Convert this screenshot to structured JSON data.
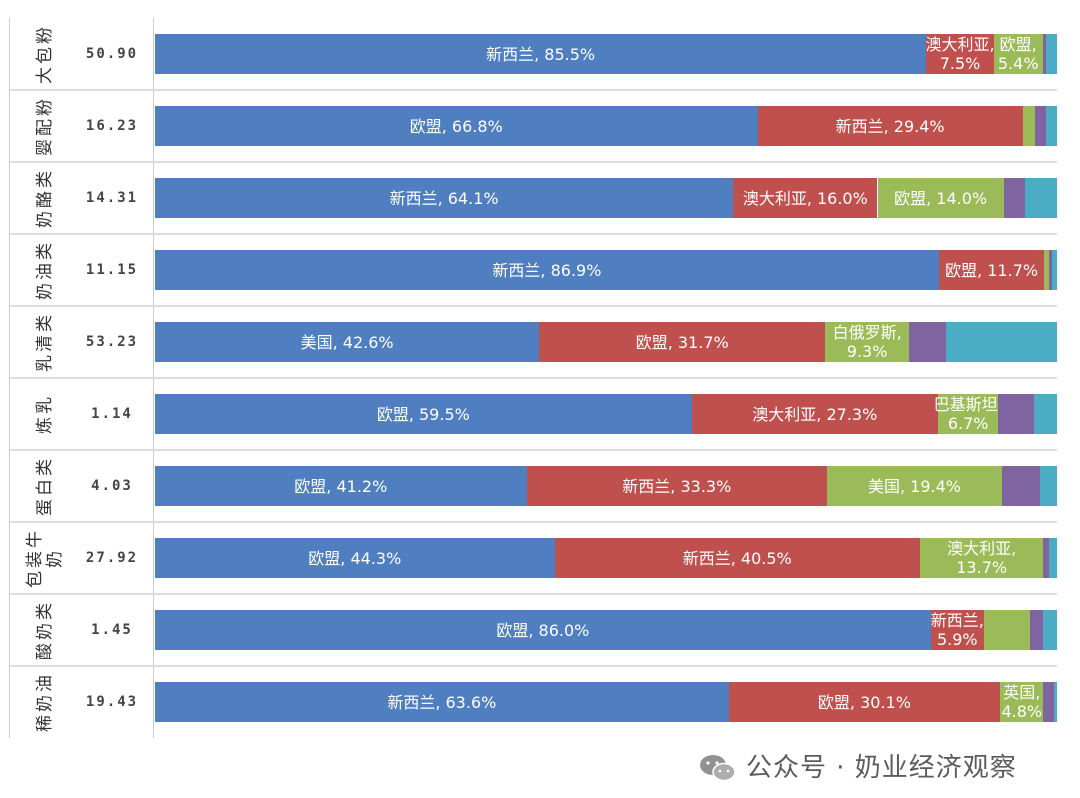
{
  "chart_data": {
    "type": "bar",
    "orientation": "horizontal",
    "stacked": "percent",
    "xlim": [
      0,
      100
    ],
    "grid": false,
    "colors": [
      "#4f7fc1",
      "#c0504d",
      "#9bbb59",
      "#8064a2",
      "#4bacc6"
    ],
    "rows": [
      {
        "category": "大包粉",
        "total": "50.90",
        "segments": [
          {
            "name": "新西兰",
            "value": 85.5
          },
          {
            "name": "澳大利亚",
            "value": 7.5
          },
          {
            "name": "欧盟",
            "value": 5.4
          },
          {
            "name": "",
            "value": 0.4
          },
          {
            "name": "",
            "value": 1.2
          }
        ]
      },
      {
        "category": "婴配粉",
        "total": "16.23",
        "segments": [
          {
            "name": "欧盟",
            "value": 66.8
          },
          {
            "name": "新西兰",
            "value": 29.4
          },
          {
            "name": "",
            "value": 1.4
          },
          {
            "name": "",
            "value": 1.2
          },
          {
            "name": "",
            "value": 1.2
          }
        ]
      },
      {
        "category": "奶酪类",
        "total": "14.31",
        "segments": [
          {
            "name": "新西兰",
            "value": 64.1
          },
          {
            "name": "澳大利亚",
            "value": 16.0
          },
          {
            "name": "欧盟",
            "value": 14.0
          },
          {
            "name": "",
            "value": 2.4
          },
          {
            "name": "",
            "value": 3.5
          }
        ]
      },
      {
        "category": "奶油类",
        "total": "11.15",
        "segments": [
          {
            "name": "新西兰",
            "value": 86.9
          },
          {
            "name": "欧盟",
            "value": 11.7
          },
          {
            "name": "",
            "value": 0.5
          },
          {
            "name": "",
            "value": 0.3
          },
          {
            "name": "",
            "value": 0.6
          }
        ]
      },
      {
        "category": "乳清类",
        "total": "53.23",
        "segments": [
          {
            "name": "美国",
            "value": 42.6
          },
          {
            "name": "欧盟",
            "value": 31.7
          },
          {
            "name": "白俄罗斯",
            "value": 9.3
          },
          {
            "name": "",
            "value": 4.1
          },
          {
            "name": "",
            "value": 12.3
          }
        ]
      },
      {
        "category": "炼乳",
        "total": "1.14",
        "segments": [
          {
            "name": "欧盟",
            "value": 59.5
          },
          {
            "name": "澳大利亚",
            "value": 27.3
          },
          {
            "name": "巴基斯坦",
            "value": 6.7
          },
          {
            "name": "",
            "value": 3.9
          },
          {
            "name": "",
            "value": 2.6
          }
        ]
      },
      {
        "category": "蛋白类",
        "total": "4.03",
        "segments": [
          {
            "name": "欧盟",
            "value": 41.2
          },
          {
            "name": "新西兰",
            "value": 33.3
          },
          {
            "name": "美国",
            "value": 19.4
          },
          {
            "name": "",
            "value": 4.2
          },
          {
            "name": "",
            "value": 1.9
          }
        ]
      },
      {
        "category": "包装牛\n奶",
        "total": "27.92",
        "segments": [
          {
            "name": "欧盟",
            "value": 44.3
          },
          {
            "name": "新西兰",
            "value": 40.5
          },
          {
            "name": "澳大利亚",
            "value": 13.7
          },
          {
            "name": "",
            "value": 0.6
          },
          {
            "name": "",
            "value": 0.9
          }
        ]
      },
      {
        "category": "酸奶类",
        "total": "1.45",
        "segments": [
          {
            "name": "欧盟",
            "value": 86.0
          },
          {
            "name": "新西兰",
            "value": 5.9
          },
          {
            "name": "",
            "value": 5.1
          },
          {
            "name": "",
            "value": 1.4
          },
          {
            "name": "",
            "value": 1.6
          }
        ]
      },
      {
        "category": "稀奶油",
        "total": "19.43",
        "segments": [
          {
            "name": "新西兰",
            "value": 63.6
          },
          {
            "name": "欧盟",
            "value": 30.1
          },
          {
            "name": "英国",
            "value": 4.8
          },
          {
            "name": "",
            "value": 1.2
          },
          {
            "name": "",
            "value": 0.3
          }
        ]
      }
    ]
  },
  "watermark": {
    "text": "公众号 · 奶业经济观察",
    "icon": "wechat-icon"
  }
}
